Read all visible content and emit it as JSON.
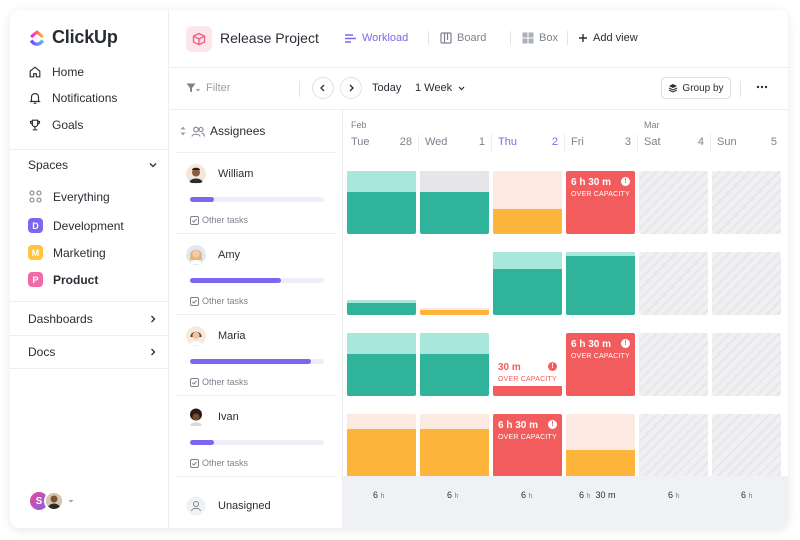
{
  "app": {
    "name": "ClickUp"
  },
  "nav": [
    {
      "label": "Home",
      "icon": "home-icon"
    },
    {
      "label": "Notifications",
      "icon": "bell-icon"
    },
    {
      "label": "Goals",
      "icon": "trophy-icon"
    }
  ],
  "spaces": {
    "title": "Spaces",
    "items": [
      {
        "label": "Everything",
        "badge": "",
        "color": ""
      },
      {
        "label": "Development",
        "badge": "D",
        "color": "#7b68ee"
      },
      {
        "label": "Marketing",
        "badge": "M",
        "color": "#ffc53d"
      },
      {
        "label": "Product",
        "badge": "P",
        "color": "#f06ba6"
      }
    ]
  },
  "sections": {
    "dashboards": "Dashboards",
    "docs": "Docs"
  },
  "user": {
    "initial": "S"
  },
  "header": {
    "project_title": "Release Project",
    "views": [
      {
        "label": "Workload",
        "icon": "workload-icon",
        "active": true
      },
      {
        "label": "Board",
        "icon": "board-icon",
        "active": false
      },
      {
        "label": "Box",
        "icon": "box-icon",
        "active": false
      }
    ],
    "add_view": "Add view"
  },
  "toolbar": {
    "filter_placeholder": "Filter",
    "today": "Today",
    "range": "1 Week",
    "group_by": "Group by"
  },
  "assignees": {
    "title": "Assignees",
    "other_tasks": "Other tasks",
    "people": [
      {
        "name": "William",
        "progress": 0.18
      },
      {
        "name": "Amy",
        "progress": 0.68
      },
      {
        "name": "Maria",
        "progress": 0.9
      },
      {
        "name": "Ivan",
        "progress": 0.18
      }
    ],
    "unassigned": "Unasigned"
  },
  "calendar": {
    "months": [
      "Feb",
      "Mar"
    ],
    "days": [
      {
        "name": "Tue",
        "num": "28",
        "today": false
      },
      {
        "name": "Wed",
        "num": "1",
        "today": false
      },
      {
        "name": "Thu",
        "num": "2",
        "today": true
      },
      {
        "name": "Fri",
        "num": "3",
        "today": false
      },
      {
        "name": "Sat",
        "num": "4",
        "today": false
      },
      {
        "name": "Sun",
        "num": "5",
        "today": false
      }
    ],
    "over_capacity": "OVER CAPACITY",
    "labels": {
      "william_fri": "6 h 30 m",
      "maria_thu": "30 m",
      "maria_fri": "6 h 30 m",
      "ivan_thu": "6 h 30 m"
    },
    "footer": [
      {
        "value": "6",
        "unit": "h",
        "extra": ""
      },
      {
        "value": "6",
        "unit": "h",
        "extra": ""
      },
      {
        "value": "6",
        "unit": "h",
        "extra": ""
      },
      {
        "value": "6",
        "unit": "h",
        "extra": "30 m"
      },
      {
        "value": "6",
        "unit": "h",
        "extra": ""
      },
      {
        "value": "6",
        "unit": "h",
        "extra": ""
      }
    ]
  },
  "colors": {
    "accent": "#7b68ee",
    "teal": "#2fb39a",
    "teal_light": "#a8e8dc",
    "orange": "#fdb43a",
    "peach": "#fbe9e2",
    "red": "#f25c5c"
  }
}
